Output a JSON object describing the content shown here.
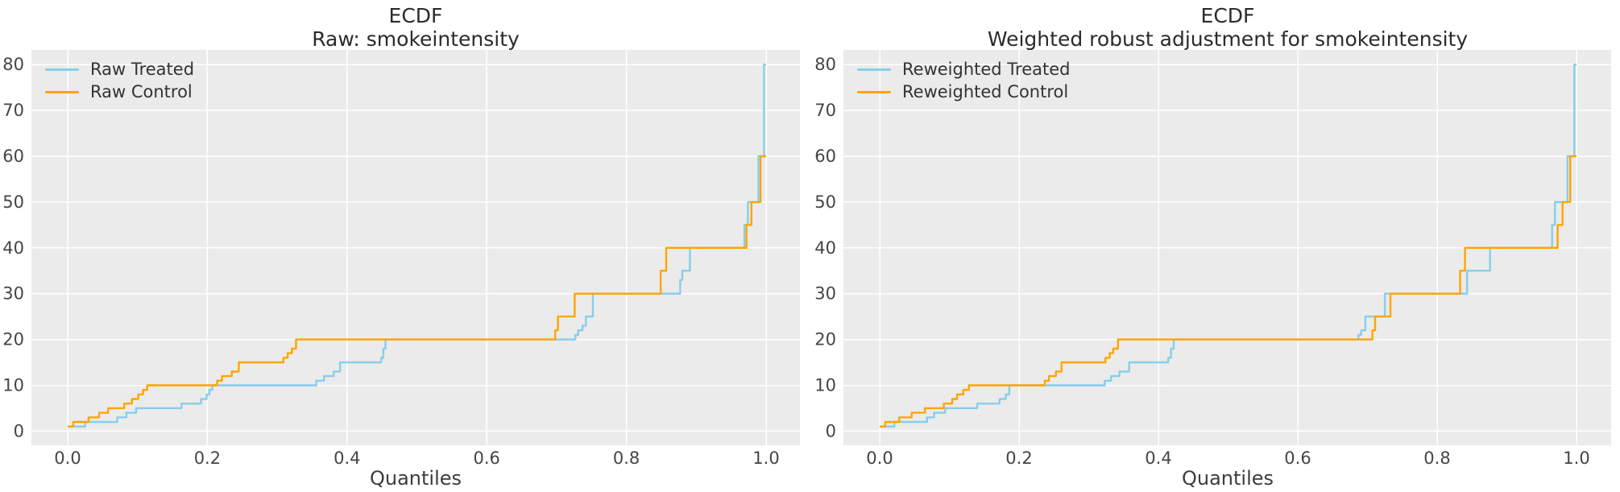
{
  "figure": {
    "background": "#ffffff",
    "plot_background": "#ebebeb",
    "grid_color": "#ffffff",
    "tick_label_color": "#454545",
    "title_color": "#2b2b2b",
    "legend_text_color": "#333333",
    "treated_color": "#87CEEB",
    "control_color": "#FFA500"
  },
  "chart_data": [
    {
      "type": "line",
      "subtype": "ecdf-quantile-step",
      "title_line1": "ECDF",
      "title_line2": "Raw: smokeintensity",
      "xlabel": "Quantiles",
      "ylabel": "",
      "x_ticks": [
        "0.0",
        "0.2",
        "0.4",
        "0.6",
        "0.8",
        "1.0"
      ],
      "x_tick_values": [
        0,
        0.2,
        0.4,
        0.6,
        0.8,
        1.0
      ],
      "y_ticks": [
        "0",
        "10",
        "20",
        "30",
        "40",
        "50",
        "60",
        "70",
        "80"
      ],
      "y_tick_values": [
        0,
        10,
        20,
        30,
        40,
        50,
        60,
        70,
        80
      ],
      "xlim": [
        -0.052,
        1.048
      ],
      "ylim": [
        -3.1,
        83.2
      ],
      "grid": true,
      "legend_position": "upper-left",
      "series": [
        {
          "name": "Raw Treated",
          "color": "#87CEEB",
          "steps": [
            [
              0,
              1
            ],
            [
              0.025,
              2
            ],
            [
              0.071,
              3
            ],
            [
              0.084,
              4
            ],
            [
              0.098,
              5
            ],
            [
              0.163,
              6
            ],
            [
              0.191,
              7
            ],
            [
              0.199,
              8
            ],
            [
              0.203,
              9
            ],
            [
              0.207,
              10
            ],
            [
              0.356,
              11
            ],
            [
              0.367,
              12
            ],
            [
              0.381,
              13
            ],
            [
              0.39,
              15
            ],
            [
              0.449,
              16
            ],
            [
              0.452,
              18
            ],
            [
              0.455,
              20
            ],
            [
              0.727,
              21
            ],
            [
              0.731,
              22
            ],
            [
              0.737,
              23
            ],
            [
              0.742,
              25
            ],
            [
              0.752,
              30
            ],
            [
              0.877,
              33
            ],
            [
              0.88,
              35
            ],
            [
              0.891,
              40
            ],
            [
              0.969,
              45
            ],
            [
              0.974,
              50
            ],
            [
              0.989,
              60
            ],
            [
              0.997,
              80
            ],
            [
              1.0,
              80
            ]
          ]
        },
        {
          "name": "Raw Control",
          "color": "#FFA500",
          "steps": [
            [
              0,
              1
            ],
            [
              0.008,
              2
            ],
            [
              0.03,
              3
            ],
            [
              0.045,
              4
            ],
            [
              0.058,
              5
            ],
            [
              0.081,
              6
            ],
            [
              0.092,
              7
            ],
            [
              0.101,
              8
            ],
            [
              0.108,
              9
            ],
            [
              0.114,
              10
            ],
            [
              0.214,
              11
            ],
            [
              0.221,
              12
            ],
            [
              0.235,
              13
            ],
            [
              0.245,
              15
            ],
            [
              0.309,
              16
            ],
            [
              0.315,
              17
            ],
            [
              0.321,
              18
            ],
            [
              0.327,
              20
            ],
            [
              0.698,
              22
            ],
            [
              0.702,
              25
            ],
            [
              0.726,
              30
            ],
            [
              0.849,
              35
            ],
            [
              0.857,
              40
            ],
            [
              0.972,
              45
            ],
            [
              0.979,
              50
            ],
            [
              0.992,
              60
            ],
            [
              1.0,
              60
            ]
          ]
        }
      ]
    },
    {
      "type": "line",
      "subtype": "ecdf-quantile-step",
      "title_line1": "ECDF",
      "title_line2": "Weighted robust adjustment for smokeintensity",
      "xlabel": "Quantiles",
      "ylabel": "",
      "x_ticks": [
        "0.0",
        "0.2",
        "0.4",
        "0.6",
        "0.8",
        "1.0"
      ],
      "x_tick_values": [
        0,
        0.2,
        0.4,
        0.6,
        0.8,
        1.0
      ],
      "y_ticks": [
        "0",
        "10",
        "20",
        "30",
        "40",
        "50",
        "60",
        "70",
        "80"
      ],
      "y_tick_values": [
        0,
        10,
        20,
        30,
        40,
        50,
        60,
        70,
        80
      ],
      "xlim": [
        -0.052,
        1.048
      ],
      "ylim": [
        -3.1,
        83.2
      ],
      "grid": true,
      "legend_position": "upper-left",
      "series": [
        {
          "name": "Reweighted Treated",
          "color": "#87CEEB",
          "steps": [
            [
              0,
              1
            ],
            [
              0.021,
              2
            ],
            [
              0.068,
              3
            ],
            [
              0.078,
              4
            ],
            [
              0.094,
              5
            ],
            [
              0.14,
              6
            ],
            [
              0.172,
              7
            ],
            [
              0.181,
              8
            ],
            [
              0.186,
              10
            ],
            [
              0.323,
              11
            ],
            [
              0.332,
              12
            ],
            [
              0.344,
              13
            ],
            [
              0.358,
              15
            ],
            [
              0.414,
              16
            ],
            [
              0.418,
              18
            ],
            [
              0.422,
              20
            ],
            [
              0.687,
              21
            ],
            [
              0.691,
              22
            ],
            [
              0.697,
              25
            ],
            [
              0.725,
              30
            ],
            [
              0.843,
              35
            ],
            [
              0.876,
              40
            ],
            [
              0.965,
              45
            ],
            [
              0.969,
              50
            ],
            [
              0.987,
              60
            ],
            [
              0.997,
              80
            ],
            [
              1.0,
              80
            ]
          ]
        },
        {
          "name": "Reweighted Control",
          "color": "#FFA500",
          "steps": [
            [
              0,
              1
            ],
            [
              0.008,
              2
            ],
            [
              0.028,
              3
            ],
            [
              0.046,
              4
            ],
            [
              0.065,
              5
            ],
            [
              0.092,
              6
            ],
            [
              0.104,
              7
            ],
            [
              0.111,
              8
            ],
            [
              0.12,
              9
            ],
            [
              0.128,
              10
            ],
            [
              0.237,
              11
            ],
            [
              0.243,
              12
            ],
            [
              0.253,
              13
            ],
            [
              0.261,
              15
            ],
            [
              0.324,
              16
            ],
            [
              0.33,
              17
            ],
            [
              0.335,
              18
            ],
            [
              0.342,
              20
            ],
            [
              0.707,
              22
            ],
            [
              0.711,
              25
            ],
            [
              0.733,
              30
            ],
            [
              0.833,
              35
            ],
            [
              0.84,
              40
            ],
            [
              0.973,
              45
            ],
            [
              0.98,
              50
            ],
            [
              0.991,
              60
            ],
            [
              1.0,
              60
            ]
          ]
        }
      ]
    }
  ]
}
